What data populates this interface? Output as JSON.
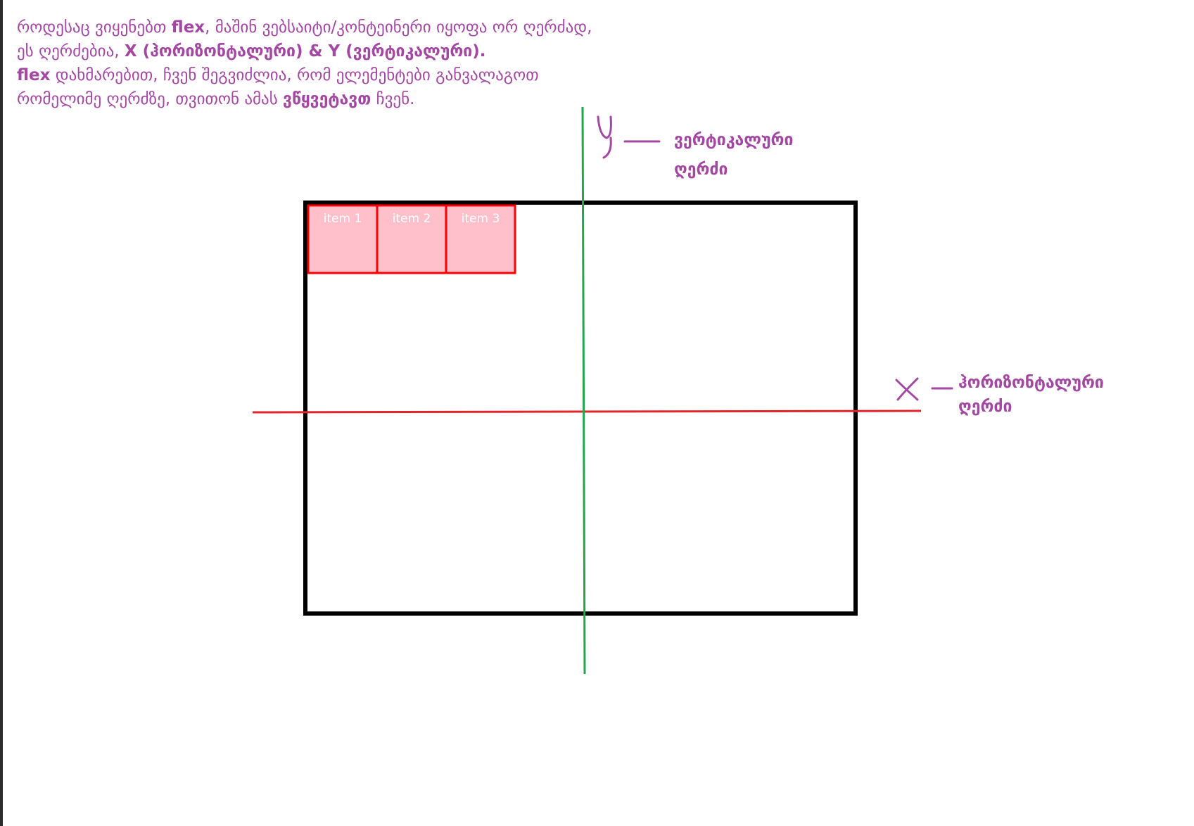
{
  "intro": {
    "line1": {
      "before": "როდესაც ვიყენებთ ",
      "flex": "flex",
      "after": ", მაშინ ვებსაიტი/კონტეინერი იყოფა ორ ღერძად,"
    },
    "line2": {
      "before": "ეს ღერძებია, ",
      "bold": "X (ჰორიზონტალური) & Y (ვერტიკალური)."
    },
    "line3": {
      "flex": "flex",
      "after": " დახმარებით, ჩვენ შეგვიძლია, რომ ელემენტები განვალაგოთ"
    },
    "line4": {
      "before": "რომელიმე ღერძზე, თვითონ ამას ",
      "bold": "ვწყვეტავთ",
      "after": " ჩვენ."
    }
  },
  "diagram": {
    "items": [
      "item 1",
      "item 2",
      "item 3"
    ],
    "y_axis": {
      "letter": "Y",
      "label_line1": "ვერტიკალური",
      "label_line2": "ღერძი",
      "color": "#22a64a"
    },
    "x_axis": {
      "letter": "X",
      "label_line1": "ჰორიზონტალური",
      "label_line2": "ღერძი",
      "color": "#e0252b"
    },
    "container_border_color": "#000000",
    "item_fill_color": "#ffc0cb",
    "item_border_color": "#ff0000",
    "text_color": "#a347a3"
  }
}
